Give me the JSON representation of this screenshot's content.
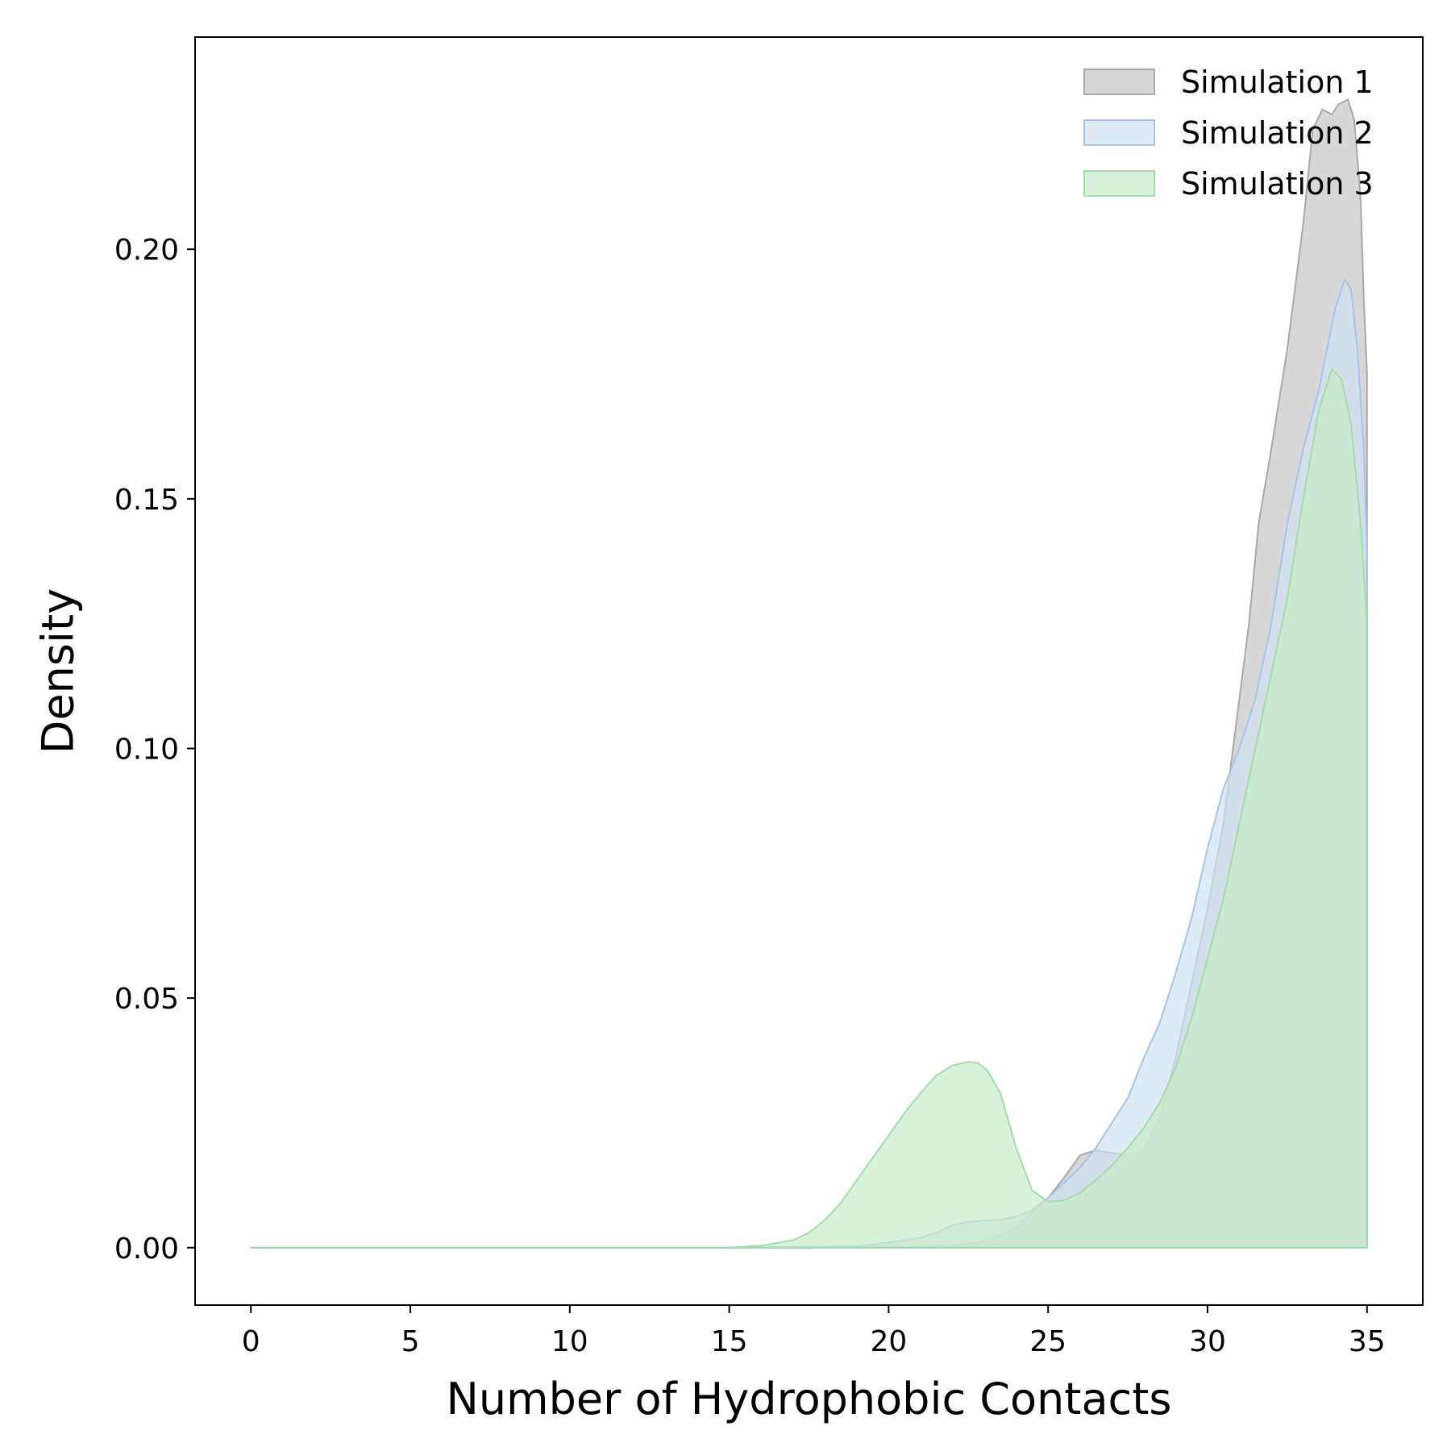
{
  "chart_data": {
    "type": "area",
    "title": "",
    "xlabel": "Number of Hydrophobic Contacts",
    "ylabel": "Density",
    "xlim": [
      -1.75,
      36.75
    ],
    "ylim": [
      -0.0115,
      0.2425
    ],
    "xticks": [
      0,
      5,
      10,
      15,
      20,
      25,
      30,
      35
    ],
    "xtick_labels": [
      "0",
      "5",
      "10",
      "15",
      "20",
      "25",
      "30",
      "35"
    ],
    "yticks": [
      0.0,
      0.05,
      0.1,
      0.15,
      0.2
    ],
    "ytick_labels": [
      "0.00",
      "0.05",
      "0.10",
      "0.15",
      "0.20"
    ],
    "grid": false,
    "legend_position": "top-right",
    "series": [
      {
        "name": "Simulation 1",
        "fill": "#c9c9c9",
        "stroke": "#a8a8a8",
        "opacity": 0.75,
        "x": [
          0,
          15,
          20,
          21,
          22,
          23,
          23.5,
          24,
          24.5,
          25,
          25.5,
          26,
          26.5,
          27,
          27.5,
          28,
          28.5,
          29,
          29.5,
          30,
          30.5,
          31,
          31.3,
          31.6,
          32,
          32.5,
          33,
          33.3,
          33.6,
          33.9,
          34.1,
          34.4,
          34.6,
          34.8,
          34.9,
          35
        ],
        "y": [
          0,
          0,
          0,
          0.0002,
          0.0005,
          0.0012,
          0.0025,
          0.004,
          0.007,
          0.01,
          0.014,
          0.0185,
          0.0195,
          0.019,
          0.0185,
          0.0195,
          0.026,
          0.038,
          0.053,
          0.068,
          0.085,
          0.11,
          0.125,
          0.145,
          0.16,
          0.18,
          0.205,
          0.224,
          0.228,
          0.227,
          0.229,
          0.23,
          0.226,
          0.21,
          0.19,
          0.175
        ]
      },
      {
        "name": "Simulation 2",
        "fill": "#d2e1f4",
        "stroke": "#a9c3e8",
        "opacity": 0.7,
        "x": [
          0,
          15,
          19,
          20,
          21,
          21.5,
          22,
          22.5,
          23,
          23.5,
          24,
          24.5,
          25,
          25.5,
          26,
          26.5,
          27,
          27.5,
          28,
          28.5,
          29,
          29.5,
          30,
          30.5,
          31,
          31.5,
          32,
          32.5,
          33,
          33.5,
          34,
          34.3,
          34.5,
          34.7,
          34.9,
          35
        ],
        "y": [
          0,
          0,
          0.0003,
          0.001,
          0.002,
          0.003,
          0.0045,
          0.0052,
          0.0054,
          0.0056,
          0.0062,
          0.0075,
          0.01,
          0.013,
          0.016,
          0.02,
          0.025,
          0.03,
          0.038,
          0.045,
          0.055,
          0.066,
          0.08,
          0.092,
          0.1,
          0.11,
          0.125,
          0.145,
          0.16,
          0.172,
          0.188,
          0.194,
          0.192,
          0.18,
          0.16,
          0.14
        ]
      },
      {
        "name": "Simulation 3",
        "fill": "#c6ebca",
        "stroke": "#a3dca9",
        "opacity": 0.7,
        "x": [
          0,
          15,
          16,
          17,
          17.5,
          18,
          18.5,
          19,
          19.5,
          20,
          20.5,
          21,
          21.5,
          22,
          22.5,
          22.8,
          23.1,
          23.5,
          24,
          24.5,
          25,
          25.5,
          26,
          26.5,
          27,
          27.5,
          28,
          28.5,
          29,
          29.5,
          30,
          30.5,
          31,
          31.5,
          32,
          32.5,
          33,
          33.5,
          33.9,
          34.2,
          34.5,
          34.8,
          35
        ],
        "y": [
          0,
          0,
          0.0004,
          0.0015,
          0.003,
          0.0055,
          0.009,
          0.0135,
          0.018,
          0.0225,
          0.027,
          0.031,
          0.0345,
          0.0365,
          0.0372,
          0.037,
          0.0355,
          0.031,
          0.02,
          0.0115,
          0.0092,
          0.0095,
          0.011,
          0.0135,
          0.0165,
          0.02,
          0.024,
          0.029,
          0.036,
          0.046,
          0.058,
          0.07,
          0.085,
          0.1,
          0.115,
          0.13,
          0.15,
          0.168,
          0.176,
          0.174,
          0.165,
          0.145,
          0.125
        ]
      }
    ]
  }
}
